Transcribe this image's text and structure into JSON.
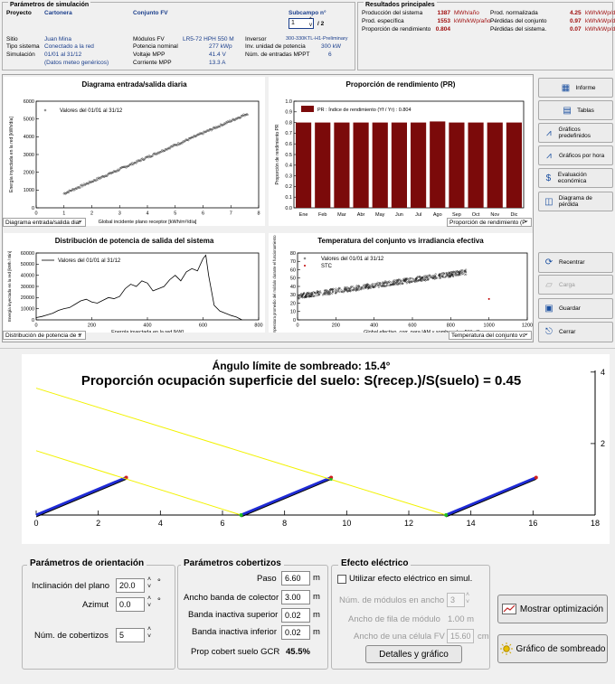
{
  "sim_params": {
    "header": "Parámetros de simulación",
    "project_label": "Proyecto",
    "project_value": "Cartonera",
    "site_label": "Sitio",
    "site_value": "Juan Mina",
    "system_type_label": "Tipo sistema",
    "system_type_value": "Conectado a la red",
    "simulation_label": "Simulación",
    "simulation_value": "01/01 al 31/12",
    "meteo_note": "(Datos meteo genéricos)"
  },
  "pv_array": {
    "header": "Conjunto FV",
    "subfield_label": "Subcampo n°",
    "subfield_value": "1",
    "subfield_total": "/ 2",
    "modules_label": "Módulos FV",
    "modules_value": "LR5-72 HPH 550 M",
    "nominal_power_label": "Potencia nominal",
    "nominal_power_value": "277 kWp",
    "vmpp_label": "Voltaje MPP",
    "vmpp_value": "41.4 V",
    "impp_label": "Corriente MPP",
    "impp_value": "13.3 A",
    "inverter_label": "Inversor",
    "inverter_value": "300-330KTL-H1-Preliminary",
    "inverter_unit_power_label": "Inv. unidad de potencia",
    "inverter_unit_power_value": "300  kW",
    "mppt_label": "Núm. de entradas MPPT",
    "mppt_value": "6"
  },
  "main_results": {
    "header": "Resultados principales",
    "rows": [
      {
        "label": "Producción del sistema",
        "value": "1387",
        "unit": "MWh/año",
        "label2": "Prod. normalizada",
        "value2": "4.25",
        "unit2": "kWh/kWp/día"
      },
      {
        "label": "Prod. específica",
        "value": "1553",
        "unit": "kWh/kWp/año",
        "label2": "Pérdidas del conjunto",
        "value2": "0.97",
        "unit2": "kWh/kWp/día"
      },
      {
        "label": "Proporción de rendimiento",
        "value": "0.804",
        "unit": "",
        "label2": "Pérdidas del sistema.",
        "value2": "0.07",
        "unit2": "kWh/kWp/día"
      }
    ]
  },
  "charts": {
    "io": {
      "title": "Diagrama entrada/salida diaria",
      "xlabel": "Global incidente plano receptor [kWh/m²/día]",
      "ylabel": "Energía inyectada en la red [kWh/día]",
      "legend": "Valores del 01/01 al 31/12",
      "xticks": [
        "0",
        "1",
        "2",
        "3",
        "4",
        "5",
        "6",
        "7",
        "8"
      ],
      "yticks": [
        "0",
        "1000",
        "2000",
        "3000",
        "4000",
        "5000",
        "6000"
      ],
      "dropdown": "Diagrama entrada/salida diar"
    },
    "pr": {
      "title": "Proporción de rendimiento (PR)",
      "ylabel": "Proporción de rendimiento PR",
      "legend": "PR : Índice de rendimiento (Yf / Yr) :  0.804",
      "yticks": [
        "0.0",
        "0.1",
        "0.2",
        "0.3",
        "0.4",
        "0.5",
        "0.6",
        "0.7",
        "0.8",
        "0.9",
        "1.0"
      ],
      "dropdown": "Proporción de rendimiento (P"
    },
    "dist": {
      "title": "Distribución de potencia de salida del sistema",
      "xlabel": "Energía inyectada en la red [kW]",
      "ylabel": "Energía inyectada en la red [kWh / Bin]",
      "legend": "Valores del 01/01 al 31/12",
      "xticks": [
        "0",
        "200",
        "400",
        "600",
        "800"
      ],
      "yticks": [
        "0",
        "10000",
        "20000",
        "30000",
        "40000",
        "50000",
        "60000"
      ],
      "dropdown": "Distribución de potencia de s"
    },
    "temp": {
      "title": "Temperatura del conjunto vs irradiancia efectiva",
      "xlabel": "Global efectivo, corr. para IAM y sombreados [W/m²]",
      "ylabel": "Temperatura promedio del módulo durante el funcionamiento",
      "legend1": "Valores del 01/01 al 31/12",
      "legend2": "STC",
      "xticks": [
        "0",
        "200",
        "400",
        "600",
        "800",
        "1000",
        "1200"
      ],
      "yticks": [
        "0",
        "10",
        "20",
        "30",
        "40",
        "50",
        "60",
        "70",
        "80"
      ],
      "dropdown": "Temperatura del conjunto vs"
    }
  },
  "chart_data": [
    {
      "type": "scatter",
      "title": "Diagrama entrada/salida diaria",
      "xlabel": "Global incidente plano receptor [kWh/m²/día]",
      "ylabel": "Energía inyectada en la red [kWh/día]",
      "xlim": [
        0,
        8
      ],
      "ylim": [
        0,
        6000
      ],
      "series": [
        {
          "name": "Valores del 01/01 al 31/12",
          "x_range": [
            1.0,
            7.6
          ],
          "y_range": [
            800,
            5300
          ],
          "approx_slope_per_kWh": 690
        }
      ]
    },
    {
      "type": "bar",
      "title": "Proporción de rendimiento (PR)",
      "categories": [
        "Ene",
        "Feb",
        "Mar",
        "Abr",
        "May",
        "Jun",
        "Jul",
        "Ago",
        "Sep",
        "Oct",
        "Nov",
        "Dic"
      ],
      "values": [
        0.8,
        0.8,
        0.8,
        0.8,
        0.8,
        0.8,
        0.8,
        0.81,
        0.8,
        0.8,
        0.8,
        0.8
      ],
      "ylim": [
        0,
        1.0
      ],
      "color": "#7b0a0a"
    },
    {
      "type": "line",
      "title": "Distribución de potencia de salida del sistema",
      "xlabel": "Energía inyectada en la red [kW]",
      "ylabel": "Energía inyectada en la red [kWh / Bin]",
      "xlim": [
        0,
        800
      ],
      "ylim": [
        0,
        60000
      ],
      "x": [
        0,
        20,
        40,
        60,
        80,
        100,
        120,
        140,
        160,
        180,
        200,
        220,
        240,
        260,
        280,
        300,
        320,
        340,
        360,
        380,
        400,
        420,
        440,
        460,
        480,
        500,
        520,
        540,
        560,
        580,
        600,
        610,
        620,
        640,
        660,
        680,
        700,
        720,
        740
      ],
      "y": [
        2000,
        3000,
        4500,
        6000,
        8500,
        10000,
        11000,
        14000,
        17000,
        18500,
        16000,
        15000,
        17500,
        20000,
        19000,
        21000,
        28000,
        32000,
        30000,
        35000,
        33000,
        26000,
        28000,
        30000,
        36000,
        40000,
        35000,
        43000,
        46000,
        44000,
        55000,
        58000,
        40000,
        13000,
        8000,
        6000,
        4000,
        2500,
        0
      ]
    },
    {
      "type": "scatter",
      "title": "Temperatura del conjunto vs irradiancia efectiva",
      "xlabel": "Global efectivo, corr. para IAM y sombreados [W/m²]",
      "ylabel": "Temperatura promedio del módulo durante el funcionamiento",
      "xlim": [
        0,
        1200
      ],
      "ylim": [
        0,
        80
      ],
      "series": [
        {
          "name": "Valores del 01/01 al 31/12",
          "x_range": [
            0,
            880
          ],
          "y_range": [
            28,
            57
          ]
        },
        {
          "name": "STC",
          "x": [
            1000
          ],
          "y": [
            25
          ]
        }
      ]
    },
    {
      "type": "line",
      "title": "Proporción ocupación superficie del suelo:  S(recep.)/S(suelo) = 0.45",
      "xlim": [
        0,
        18
      ],
      "ylim": [
        0,
        4.5
      ],
      "series": [
        {
          "name": "collector-1",
          "x": [
            0.0,
            2.9
          ],
          "y": [
            0.0,
            1.05
          ]
        },
        {
          "name": "collector-2",
          "x": [
            6.6,
            9.5
          ],
          "y": [
            0.0,
            1.05
          ]
        },
        {
          "name": "collector-3",
          "x": [
            13.2,
            16.1
          ],
          "y": [
            0.0,
            1.05
          ]
        },
        {
          "name": "shade-ray-1",
          "x": [
            0.0,
            13.2
          ],
          "y": [
            3.55,
            0.0
          ]
        },
        {
          "name": "shade-ray-2",
          "x": [
            0.0,
            6.6
          ],
          "y": [
            1.8,
            0.0
          ]
        }
      ]
    }
  ],
  "right_buttons": [
    {
      "label": "Informe",
      "icon": "report-icon",
      "enabled": true
    },
    {
      "label": "Tablas",
      "icon": "tables-icon",
      "enabled": true
    },
    {
      "label": "Gráficos predefinidos",
      "icon": "predefined-charts-icon",
      "enabled": true
    },
    {
      "label": "Gráficos por hora",
      "icon": "hourly-charts-icon",
      "enabled": true
    },
    {
      "label": "Evaluación económica",
      "icon": "economic-icon",
      "enabled": true
    },
    {
      "label": "Diagrama de pérdida",
      "icon": "loss-diagram-icon",
      "enabled": true
    },
    {
      "label": "Recentrar",
      "icon": "refresh-icon",
      "enabled": true
    },
    {
      "label": "Carga",
      "icon": "folder-icon",
      "enabled": false
    },
    {
      "label": "Guardar",
      "icon": "save-icon",
      "enabled": true
    },
    {
      "label": "Cerrar",
      "icon": "close-icon",
      "enabled": true
    }
  ],
  "shading": {
    "limit_angle_label": "Ángulo límite de sombreado:",
    "limit_angle_value": "15.4°",
    "gcr_title": "Proporción ocupación superficie del suelo:  S(recep.)/S(suelo) = 0.45",
    "xticks": [
      "0",
      "2",
      "4",
      "6",
      "8",
      "10",
      "12",
      "14",
      "16",
      "18"
    ],
    "yticks": [
      "2",
      "4"
    ]
  },
  "orientation": {
    "title": "Parámetros de orientación",
    "tilt_label": "Inclinación del plano",
    "tilt_value": "20.0",
    "tilt_unit": "°",
    "azimuth_label": "Azimut",
    "azimuth_value": "0.0",
    "azimuth_unit": "°",
    "sheds_label": "Núm. de cobertizos",
    "sheds_value": "5"
  },
  "sheds": {
    "title": "Parámetros cobertizos",
    "pitch_label": "Paso",
    "pitch_value": "6.60",
    "pitch_unit": "m",
    "collector_width_label": "Ancho banda de colector",
    "collector_width_value": "3.00",
    "collector_width_unit": "m",
    "top_inactive_label": "Banda inactiva superior",
    "top_inactive_value": "0.02",
    "top_inactive_unit": "m",
    "bottom_inactive_label": "Banda inactiva inferior",
    "bottom_inactive_value": "0.02",
    "bottom_inactive_unit": "m",
    "gcr_label": "Prop cobert suelo GCR",
    "gcr_value": "45.5%"
  },
  "electrical": {
    "title": "Efecto eléctrico",
    "use_effect_label": "Utilizar efecto eléctrico en simul.",
    "modules_width_label": "Núm. de módulos en ancho",
    "modules_width_value": "3",
    "module_row_width_label": "Ancho de fila de módulo",
    "module_row_width_value": "1.00 m",
    "cell_width_label": "Ancho de una célula FV",
    "cell_width_value": "15.60",
    "cell_width_unit": "cm",
    "details_button": "Detalles y gráfico"
  },
  "bottom_buttons": {
    "optimization": "Mostrar optimización",
    "shading_chart": "Gráfico de sombreado"
  },
  "colors": {
    "pr_bar": "#7b0a0a",
    "collector_blue": "#1f2bd6",
    "shade_ray": "#f2f200",
    "result_red": "#a01010",
    "label_blue": "#1a3e8c"
  }
}
